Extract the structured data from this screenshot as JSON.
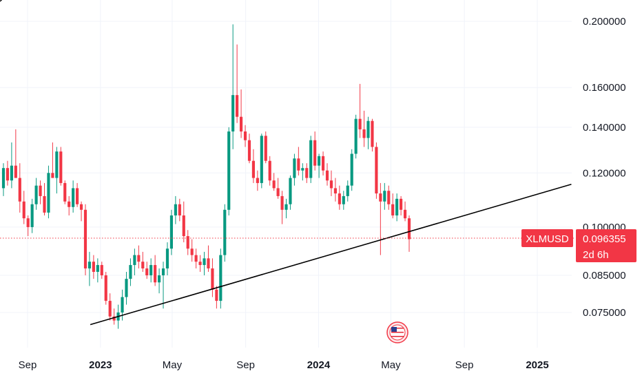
{
  "colors": {
    "up": "#089981",
    "down": "#f23645",
    "grid": "#f0f3fa",
    "text": "#131722",
    "trendline": "#000000",
    "current_price_line": "#f23645",
    "label_bg": "#f23645",
    "label_text": "#ffffff"
  },
  "chart_data": {
    "type": "candlestick",
    "symbol": "XLMUSD",
    "price_scale": "log",
    "y_ticks": [
      "0.200000",
      "0.160000",
      "0.140000",
      "0.120000",
      "0.100000",
      "0.085000",
      "0.075000"
    ],
    "x_ticks": [
      {
        "label": "Sep",
        "bold": false,
        "date": "2022-09-01"
      },
      {
        "label": "2023",
        "bold": true,
        "date": "2023-01-01"
      },
      {
        "label": "May",
        "bold": false,
        "date": "2023-05-01"
      },
      {
        "label": "Sep",
        "bold": false,
        "date": "2023-09-01"
      },
      {
        "label": "2024",
        "bold": true,
        "date": "2024-01-01"
      },
      {
        "label": "May",
        "bold": false,
        "date": "2024-05-01"
      },
      {
        "label": "Sep",
        "bold": false,
        "date": "2024-09-01"
      },
      {
        "label": "2025",
        "bold": true,
        "date": "2025-01-01"
      }
    ],
    "x_range": [
      "2022-07-02",
      "2025-03-01"
    ],
    "y_range": [
      0.0695,
      0.222
    ],
    "current_price": {
      "symbol_label": "XLMUSD",
      "value": 0.096355,
      "value_label": "0.096355",
      "countdown": "2d 6h"
    },
    "trendline": {
      "start": {
        "date": "2022-12-15",
        "price": 0.072
      },
      "end": {
        "date": "2025-02-27",
        "price": 0.1155
      }
    },
    "grid": true,
    "event_marker": {
      "type": "flag-icon",
      "date": "2024-05-12"
    },
    "candles": [
      [
        0.114,
        0.124,
        0.111,
        0.122
      ],
      [
        0.122,
        0.125,
        0.115,
        0.117
      ],
      [
        0.117,
        0.133,
        0.114,
        0.123
      ],
      [
        0.123,
        0.139,
        0.118,
        0.118
      ],
      [
        0.118,
        0.124,
        0.105,
        0.109
      ],
      [
        0.109,
        0.113,
        0.101,
        0.103
      ],
      [
        0.103,
        0.104,
        0.097,
        0.1
      ],
      [
        0.1,
        0.11,
        0.098,
        0.108
      ],
      [
        0.108,
        0.118,
        0.106,
        0.115
      ],
      [
        0.115,
        0.117,
        0.108,
        0.111
      ],
      [
        0.111,
        0.116,
        0.104,
        0.105
      ],
      [
        0.105,
        0.123,
        0.103,
        0.12
      ],
      [
        0.12,
        0.133,
        0.118,
        0.118
      ],
      [
        0.118,
        0.131,
        0.112,
        0.129
      ],
      [
        0.129,
        0.131,
        0.115,
        0.116
      ],
      [
        0.116,
        0.117,
        0.108,
        0.109
      ],
      [
        0.109,
        0.111,
        0.104,
        0.107
      ],
      [
        0.107,
        0.117,
        0.105,
        0.114
      ],
      [
        0.114,
        0.116,
        0.107,
        0.108
      ],
      [
        0.108,
        0.109,
        0.102,
        0.106
      ],
      [
        0.106,
        0.108,
        0.085,
        0.087
      ],
      [
        0.087,
        0.092,
        0.082,
        0.089
      ],
      [
        0.089,
        0.091,
        0.084,
        0.086
      ],
      [
        0.086,
        0.09,
        0.083,
        0.088
      ],
      [
        0.088,
        0.089,
        0.084,
        0.085
      ],
      [
        0.085,
        0.086,
        0.077,
        0.078
      ],
      [
        0.078,
        0.08,
        0.073,
        0.074
      ],
      [
        0.074,
        0.076,
        0.072,
        0.073
      ],
      [
        0.073,
        0.077,
        0.071,
        0.075
      ],
      [
        0.075,
        0.081,
        0.073,
        0.079
      ],
      [
        0.079,
        0.086,
        0.077,
        0.084
      ],
      [
        0.084,
        0.09,
        0.082,
        0.088
      ],
      [
        0.088,
        0.093,
        0.085,
        0.091
      ],
      [
        0.091,
        0.094,
        0.087,
        0.089
      ],
      [
        0.089,
        0.092,
        0.086,
        0.087
      ],
      [
        0.087,
        0.089,
        0.084,
        0.085
      ],
      [
        0.085,
        0.09,
        0.083,
        0.088
      ],
      [
        0.088,
        0.091,
        0.082,
        0.083
      ],
      [
        0.083,
        0.087,
        0.08,
        0.085
      ],
      [
        0.085,
        0.089,
        0.076,
        0.087
      ],
      [
        0.087,
        0.095,
        0.085,
        0.093
      ],
      [
        0.093,
        0.106,
        0.091,
        0.104
      ],
      [
        0.104,
        0.111,
        0.101,
        0.108
      ],
      [
        0.108,
        0.11,
        0.102,
        0.104
      ],
      [
        0.104,
        0.109,
        0.095,
        0.097
      ],
      [
        0.097,
        0.099,
        0.091,
        0.093
      ],
      [
        0.093,
        0.096,
        0.089,
        0.091
      ],
      [
        0.091,
        0.093,
        0.087,
        0.089
      ],
      [
        0.089,
        0.091,
        0.086,
        0.088
      ],
      [
        0.088,
        0.092,
        0.085,
        0.09
      ],
      [
        0.09,
        0.094,
        0.086,
        0.087
      ],
      [
        0.087,
        0.09,
        0.079,
        0.081
      ],
      [
        0.081,
        0.082,
        0.076,
        0.078
      ],
      [
        0.078,
        0.093,
        0.076,
        0.091
      ],
      [
        0.091,
        0.108,
        0.089,
        0.106
      ],
      [
        0.106,
        0.14,
        0.104,
        0.138
      ],
      [
        0.138,
        0.198,
        0.13,
        0.156
      ],
      [
        0.156,
        0.185,
        0.142,
        0.145
      ],
      [
        0.145,
        0.159,
        0.135,
        0.138
      ],
      [
        0.138,
        0.141,
        0.131,
        0.134
      ],
      [
        0.134,
        0.137,
        0.124,
        0.125
      ],
      [
        0.125,
        0.13,
        0.116,
        0.118
      ],
      [
        0.118,
        0.121,
        0.113,
        0.116
      ],
      [
        0.116,
        0.137,
        0.114,
        0.136
      ],
      [
        0.136,
        0.138,
        0.124,
        0.125
      ],
      [
        0.125,
        0.127,
        0.115,
        0.117
      ],
      [
        0.117,
        0.12,
        0.113,
        0.114
      ],
      [
        0.114,
        0.118,
        0.11,
        0.111
      ],
      [
        0.111,
        0.113,
        0.101,
        0.106
      ],
      [
        0.106,
        0.11,
        0.103,
        0.108
      ],
      [
        0.108,
        0.119,
        0.106,
        0.118
      ],
      [
        0.118,
        0.128,
        0.115,
        0.126
      ],
      [
        0.126,
        0.131,
        0.119,
        0.121
      ],
      [
        0.121,
        0.124,
        0.117,
        0.122
      ],
      [
        0.122,
        0.124,
        0.116,
        0.118
      ],
      [
        0.118,
        0.136,
        0.116,
        0.134
      ],
      [
        0.134,
        0.138,
        0.121,
        0.123
      ],
      [
        0.123,
        0.128,
        0.118,
        0.127
      ],
      [
        0.127,
        0.129,
        0.119,
        0.121
      ],
      [
        0.121,
        0.124,
        0.115,
        0.117
      ],
      [
        0.117,
        0.121,
        0.111,
        0.114
      ],
      [
        0.114,
        0.118,
        0.109,
        0.112
      ],
      [
        0.112,
        0.115,
        0.106,
        0.108
      ],
      [
        0.108,
        0.113,
        0.106,
        0.111
      ],
      [
        0.111,
        0.117,
        0.109,
        0.115
      ],
      [
        0.115,
        0.13,
        0.113,
        0.128
      ],
      [
        0.128,
        0.146,
        0.126,
        0.144
      ],
      [
        0.144,
        0.162,
        0.135,
        0.139
      ],
      [
        0.139,
        0.148,
        0.131,
        0.135
      ],
      [
        0.135,
        0.145,
        0.13,
        0.143
      ],
      [
        0.143,
        0.144,
        0.129,
        0.131
      ],
      [
        0.131,
        0.133,
        0.11,
        0.112
      ],
      [
        0.112,
        0.116,
        0.091,
        0.109
      ],
      [
        0.109,
        0.116,
        0.106,
        0.113
      ],
      [
        0.113,
        0.115,
        0.106,
        0.108
      ],
      [
        0.108,
        0.112,
        0.103,
        0.104
      ],
      [
        0.104,
        0.112,
        0.102,
        0.11
      ],
      [
        0.11,
        0.111,
        0.104,
        0.106
      ],
      [
        0.106,
        0.109,
        0.102,
        0.103
      ],
      [
        0.103,
        0.104,
        0.092,
        0.096
      ]
    ]
  }
}
